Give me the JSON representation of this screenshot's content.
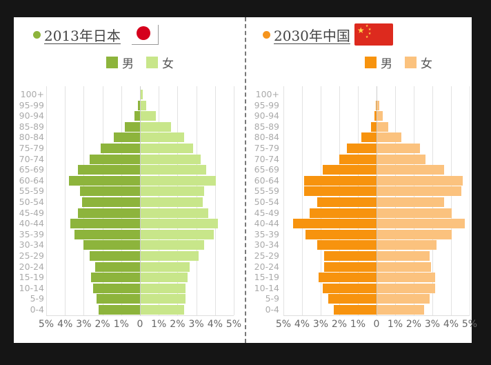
{
  "left_panel": {
    "title": "2013年日本",
    "dot_color": "#8db43c",
    "flag": "japan-flag",
    "legend": [
      {
        "label": "男",
        "color": "#8db43c"
      },
      {
        "label": "女",
        "color": "#c8e68a"
      }
    ]
  },
  "right_panel": {
    "title": "2030年中国",
    "dot_color": "#f5941d",
    "flag": "china-flag",
    "legend": [
      {
        "label": "男",
        "color": "#f7930e"
      },
      {
        "label": "女",
        "color": "#fbc27e"
      }
    ]
  },
  "x_ticks": [
    "5%",
    "4%",
    "3%",
    "2%",
    "1%",
    "0",
    "1%",
    "2%",
    "3%",
    "4%",
    "5%"
  ],
  "chart_data": [
    {
      "type": "bar",
      "title": "2013年日本",
      "orientation": "horizontal-population-pyramid",
      "categories": [
        "100+",
        "95-99",
        "90-94",
        "85-89",
        "80-84",
        "75-79",
        "70-74",
        "65-69",
        "60-64",
        "55-59",
        "50-54",
        "45-49",
        "40-44",
        "35-39",
        "30-34",
        "25-29",
        "20-24",
        "15-19",
        "10-14",
        "5-9",
        "0-4"
      ],
      "series": [
        {
          "name": "男",
          "color": "#8db43c",
          "values": [
            0.0,
            0.1,
            0.3,
            0.8,
            1.4,
            2.1,
            2.7,
            3.3,
            3.8,
            3.2,
            3.1,
            3.3,
            3.7,
            3.5,
            3.0,
            2.7,
            2.4,
            2.6,
            2.5,
            2.3,
            2.2
          ]
        },
        {
          "name": "女",
          "color": "#c8e68a",
          "values": [
            0.1,
            0.3,
            0.8,
            1.6,
            2.3,
            2.8,
            3.2,
            3.5,
            4.0,
            3.4,
            3.3,
            3.6,
            4.1,
            3.9,
            3.4,
            3.1,
            2.6,
            2.5,
            2.4,
            2.4,
            2.3
          ]
        }
      ],
      "xlabel": "",
      "ylabel": "",
      "xlim": [
        -5,
        5
      ],
      "x_tick_labels": [
        "5%",
        "4%",
        "3%",
        "2%",
        "1%",
        "0",
        "1%",
        "2%",
        "3%",
        "4%",
        "5%"
      ],
      "grid": true,
      "legend_position": "top"
    },
    {
      "type": "bar",
      "title": "2030年中国",
      "orientation": "horizontal-population-pyramid",
      "categories": [
        "100+",
        "95-99",
        "90-94",
        "85-89",
        "80-84",
        "75-79",
        "70-74",
        "65-69",
        "60-64",
        "55-59",
        "50-54",
        "45-49",
        "40-44",
        "35-39",
        "30-34",
        "25-29",
        "20-24",
        "15-19",
        "10-14",
        "5-9",
        "0-4"
      ],
      "series": [
        {
          "name": "男",
          "color": "#f7930e",
          "values": [
            0.0,
            0.05,
            0.1,
            0.3,
            0.8,
            1.6,
            2.0,
            2.9,
            3.9,
            3.9,
            3.2,
            3.6,
            4.5,
            3.8,
            3.2,
            2.8,
            2.8,
            3.1,
            2.9,
            2.6,
            2.3
          ]
        },
        {
          "name": "女",
          "color": "#fbc27e",
          "values": [
            0.0,
            0.1,
            0.3,
            0.6,
            1.3,
            2.3,
            2.6,
            3.6,
            4.6,
            4.5,
            3.6,
            4.0,
            4.7,
            4.0,
            3.2,
            2.8,
            2.9,
            3.1,
            3.1,
            2.8,
            2.5
          ]
        }
      ],
      "xlabel": "",
      "ylabel": "",
      "xlim": [
        -5,
        5
      ],
      "x_tick_labels": [
        "5%",
        "4%",
        "3%",
        "2%",
        "1%",
        "0",
        "1%",
        "2%",
        "3%",
        "4%",
        "5%"
      ],
      "grid": true,
      "legend_position": "top"
    }
  ]
}
